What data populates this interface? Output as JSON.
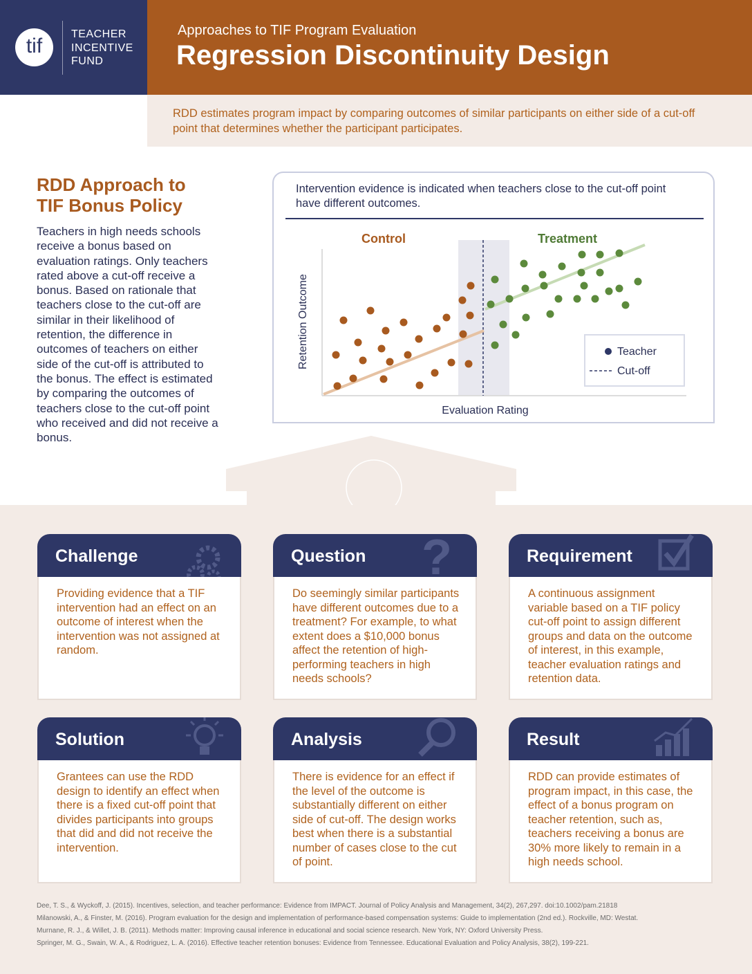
{
  "header": {
    "logo_mark": "tif",
    "logo_lines": [
      "TEACHER",
      "INCENTIVE",
      "FUND"
    ],
    "subtitle": "Approaches to TIF Program Evaluation",
    "title": "Regression Discontinuity Design"
  },
  "intro": "RDD estimates program impact by comparing outcomes of similar participants on either side of a cut-off point that determines whether the participant participates.",
  "approach": {
    "title_lines": [
      "RDD Approach to",
      "TIF Bonus Policy"
    ],
    "body": "Teachers in high needs schools receive a bonus based on evaluation ratings. Only teachers rated above a cut-off receive a bonus. Based on rationale that teachers close to the cut-off are similar in their likelihood of retention, the difference in outcomes of teachers on either side of the cut-off is attributed to the bonus. The effect is estimated by comparing the outcomes of teachers close to the cut-off point who received and did not receive a bonus."
  },
  "diagram": {
    "caption": "Intervention evidence is indicated when teachers close to the cut-off point have different outcomes.",
    "control_label": "Control",
    "treatment_label": "Treatment",
    "y_label": "Retention Outcome",
    "x_label": "Evaluation Rating",
    "legend": [
      "Teacher",
      "Cut-off"
    ]
  },
  "cards": [
    {
      "title": "Challenge",
      "body": "Providing evidence that a TIF intervention had an effect on an outcome of interest when the intervention was not assigned at random."
    },
    {
      "title": "Question",
      "body": "Do seemingly similar participants have different outcomes due to a treatment? For example, to what extent does a $10,000 bonus affect the retention of high-performing teachers in high needs schools?"
    },
    {
      "title": "Requirement",
      "body": "A continuous assignment variable based on a TIF policy cut-off point to assign different groups and data on the outcome of interest, in this example, teacher evaluation ratings and retention data."
    },
    {
      "title": "Solution",
      "body": "Grantees can use  the RDD design to identify an effect when there is a fixed cut-off point that divides participants into groups that did and did not receive the intervention."
    },
    {
      "title": "Analysis",
      "body": "There is evidence for an effect if the level of the outcome is substantially different on either side of  cut-off. The design works best when there is a substantial number of cases close to the cut of point."
    },
    {
      "title": "Result",
      "body": "RDD can provide estimates of program impact, in this case, the effect of a bonus program on teacher retention, such as, teachers receiving a bonus are 30% more likely to remain in a high needs school."
    }
  ],
  "references": [
    "Dee, T. S., & Wyckoff, J. (2015). Incentives, selection, and teacher performance: Evidence from IMPACT. Journal of Policy Analysis and Management, 34(2), 267,297. doi:10.1002/pam.21818",
    "Milanowski, A., & Finster, M. (2016). Program evaluation for the design and implementation of performance-based compensation systems: Guide to implementation (2nd ed.). Rockville, MD: Westat.",
    "Murnane, R. J., & Willet, J. B. (2011). Methods matter: Improving causal inference in educational and social science research. New York, NY: Oxford University Press.",
    "Springer, M. G., Swain, W. A., & Rodriguez, L. A. (2016). Effective teacher retention bonuses: Evidence from Tennessee. Educational Evaluation and Policy Analysis, 38(2), 199-221."
  ]
}
